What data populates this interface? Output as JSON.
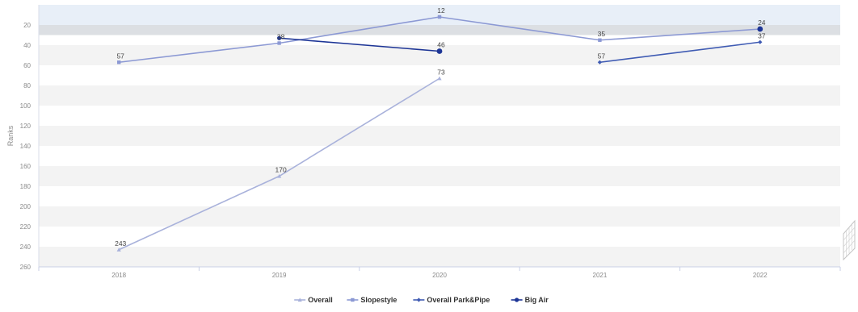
{
  "chart_data": {
    "type": "line",
    "title": "",
    "xlabel": "",
    "ylabel": "Ranks",
    "y_reversed": true,
    "ylim": [
      0,
      260
    ],
    "yticks": [
      20,
      40,
      60,
      80,
      100,
      120,
      140,
      160,
      180,
      200,
      220,
      240,
      260
    ],
    "categories": [
      "2018",
      "2019",
      "2020",
      "2021",
      "2022"
    ],
    "grid": "alternating horizontal bands",
    "legend_position": "bottom-center",
    "series": [
      {
        "name": "Overall",
        "color": "#a9b2db",
        "marker": "triangle",
        "values": [
          243,
          170,
          73,
          null,
          null
        ]
      },
      {
        "name": "Slopestyle",
        "color": "#8c99d4",
        "marker": "square",
        "values": [
          57,
          38,
          12,
          35,
          24
        ]
      },
      {
        "name": "Overall Park&Pipe",
        "color": "#3f5bb3",
        "marker": "diamond",
        "values": [
          null,
          null,
          null,
          57,
          37
        ]
      },
      {
        "name": "Big Air",
        "color": "#1d3596",
        "marker": "circle",
        "values": [
          null,
          33,
          46,
          null,
          24
        ]
      }
    ],
    "data_labels": [
      {
        "series": "Overall",
        "category": "2018",
        "text": "243"
      },
      {
        "series": "Overall",
        "category": "2019",
        "text": "170"
      },
      {
        "series": "Overall",
        "category": "2020",
        "text": "73"
      },
      {
        "series": "Slopestyle",
        "category": "2018",
        "text": "57"
      },
      {
        "series": "Slopestyle",
        "category": "2019",
        "text": "38"
      },
      {
        "series": "Slopestyle",
        "category": "2020",
        "text": "12"
      },
      {
        "series": "Slopestyle",
        "category": "2021",
        "text": "35"
      },
      {
        "series": "Slopestyle",
        "category": "2022",
        "text": "24"
      },
      {
        "series": "Overall Park&Pipe",
        "category": "2021",
        "text": "57"
      },
      {
        "series": "Overall Park&Pipe",
        "category": "2022",
        "text": "37"
      },
      {
        "series": "Big Air",
        "category": "2020",
        "text": "46"
      }
    ]
  }
}
